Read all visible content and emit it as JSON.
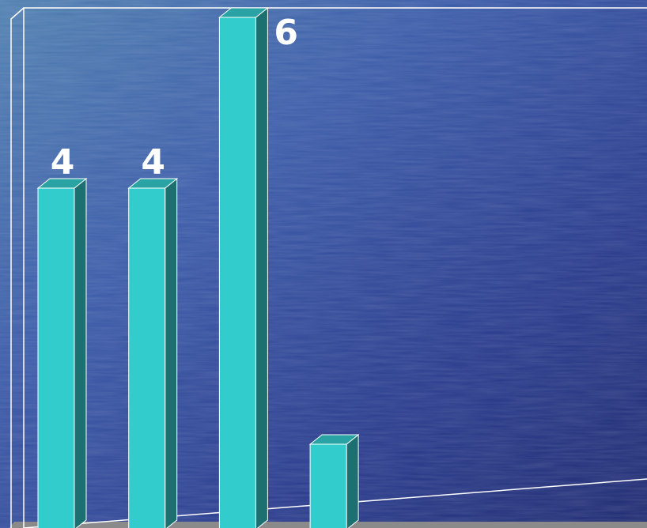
{
  "chart_data": {
    "type": "bar3d",
    "categories": [
      null,
      null,
      null,
      null
    ],
    "values": [
      4,
      4,
      6,
      1
    ],
    "value_labels": [
      "4",
      "4",
      "6",
      null
    ],
    "color": "#33cccc",
    "ylim": [
      0,
      6
    ]
  }
}
